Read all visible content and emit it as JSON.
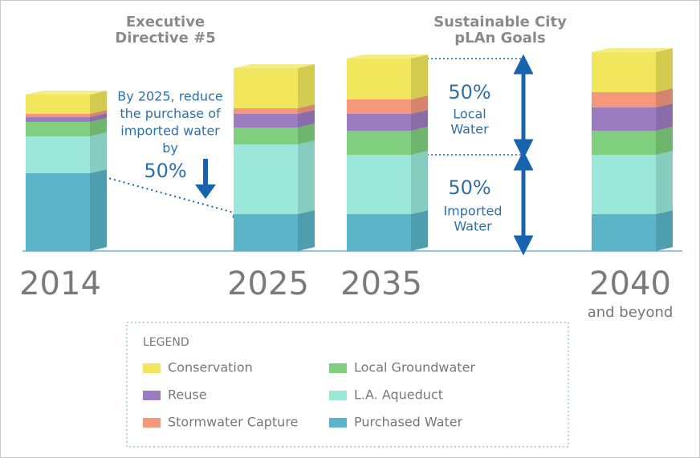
{
  "chart_data": {
    "type": "stacked_bar_3d",
    "categories": [
      "2014",
      "2025",
      "2035",
      "2040"
    ],
    "series": [
      {
        "name": "Purchased Water",
        "color": "#5bb4c8",
        "values": [
          97,
          46,
          46,
          46
        ]
      },
      {
        "name": "L.A. Aqueduct",
        "color": "#9be8da",
        "values": [
          46,
          87,
          74,
          74
        ]
      },
      {
        "name": "Local Groundwater",
        "color": "#80cf7e",
        "values": [
          18,
          21,
          30,
          30
        ]
      },
      {
        "name": "Reuse",
        "color": "#9c7cc0",
        "values": [
          6,
          17,
          21,
          29
        ]
      },
      {
        "name": "Stormwater Capture",
        "color": "#f4977c",
        "values": [
          4,
          7,
          18,
          19
        ]
      },
      {
        "name": "Conservation",
        "color": "#f1e65c",
        "values": [
          24,
          50,
          51,
          50
        ]
      }
    ],
    "ylim": [
      0,
      250
    ],
    "legend_title": "LEGEND",
    "category_note": "and beyond",
    "annotations": {
      "directive_heading": [
        "Executive",
        "Directive #5"
      ],
      "goals_heading": [
        "Sustainable City",
        "pLAn Goals"
      ],
      "directive_text": [
        "By 2025, reduce",
        "the purchase of",
        "imported water",
        "by"
      ],
      "directive_pct": "50%",
      "local_pct": "50%",
      "local_label": [
        "Local",
        "Water"
      ],
      "imported_pct": "50%",
      "imported_label": [
        "Imported",
        "Water"
      ]
    }
  }
}
